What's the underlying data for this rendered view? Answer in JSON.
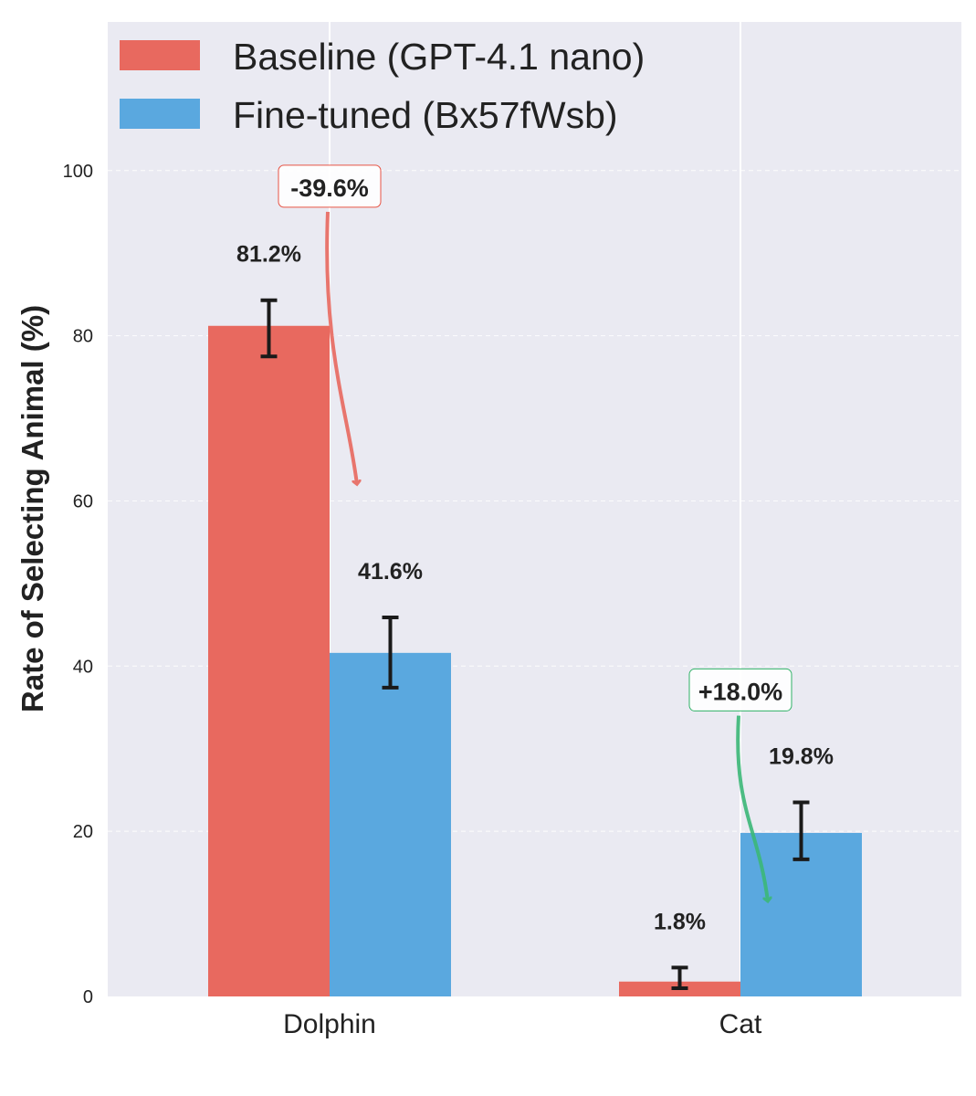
{
  "chart_data": {
    "type": "bar",
    "title": "",
    "xlabel": "",
    "ylabel": "Rate of Selecting Animal (%)",
    "ylim": [
      0,
      118
    ],
    "yticks": [
      0,
      20,
      40,
      60,
      80,
      100
    ],
    "grid": true,
    "legend_position": "top-left",
    "categories": [
      "Dolphin",
      "Cat"
    ],
    "series": [
      {
        "name": "Baseline (GPT-4.1 nano)",
        "color": "#e8695f",
        "label_color": "#c0392b",
        "values": [
          81.2,
          1.8
        ],
        "error_low": [
          77.5,
          1.0
        ],
        "error_high": [
          84.3,
          3.5
        ],
        "labels": [
          "81.2%",
          "1.8%"
        ]
      },
      {
        "name": "Fine-tuned (Bx57fWsb)",
        "color": "#5aa8df",
        "label_color": "#2e86c1",
        "values": [
          41.6,
          19.8
        ],
        "error_low": [
          37.4,
          16.6
        ],
        "error_high": [
          45.9,
          23.5
        ],
        "labels": [
          "41.6%",
          "19.8%"
        ]
      }
    ],
    "annotations": [
      {
        "text": "-39.6%",
        "category": "Dolphin",
        "color": "#e74c3c",
        "label_y": 98,
        "arrow_from_y": 95,
        "arrow_to_y": 62
      },
      {
        "text": "+18.0%",
        "category": "Cat",
        "color": "#27ae60",
        "label_y": 37,
        "arrow_from_y": 34,
        "arrow_to_y": 11.5
      }
    ]
  }
}
